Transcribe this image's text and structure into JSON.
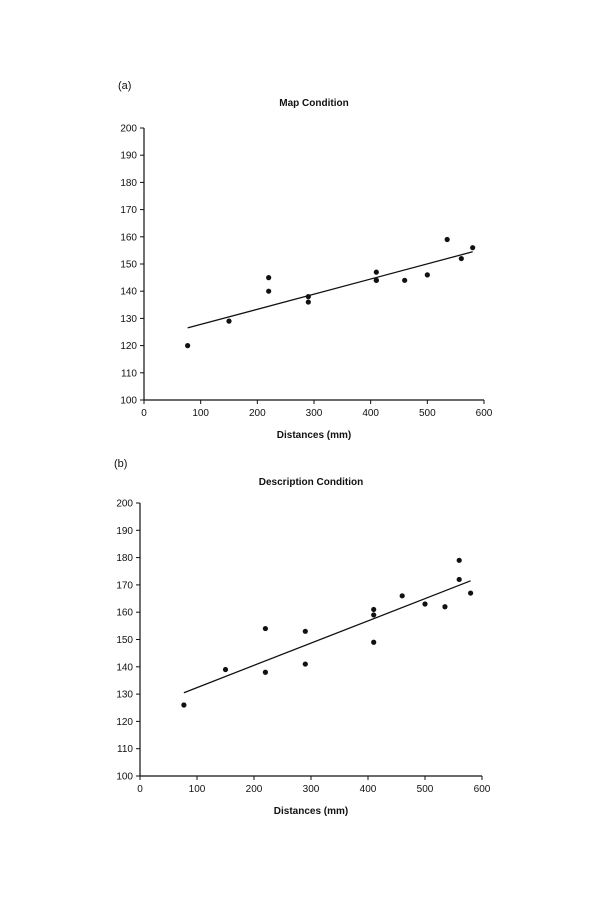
{
  "panels": [
    {
      "label": "(a)"
    },
    {
      "label": "(b)"
    }
  ],
  "chart_data": [
    {
      "type": "scatter",
      "title": "Map Condition",
      "xlabel": "Distances (mm)",
      "ylabel": "",
      "xlim": [
        0,
        600
      ],
      "ylim": [
        100,
        200
      ],
      "xticks": [
        0,
        100,
        200,
        300,
        400,
        500,
        600
      ],
      "yticks": [
        100,
        110,
        120,
        130,
        140,
        150,
        160,
        170,
        180,
        190,
        200
      ],
      "grid": false,
      "x": [
        77,
        150,
        220,
        220,
        290,
        290,
        410,
        410,
        410,
        460,
        500,
        535,
        560,
        580
      ],
      "y": [
        120,
        129,
        145,
        140,
        138,
        136,
        147,
        144,
        144,
        144,
        146,
        159,
        152,
        156
      ],
      "trendline": {
        "x": [
          77,
          580
        ],
        "y": [
          126.5,
          154.5
        ]
      }
    },
    {
      "type": "scatter",
      "title": "Description Condition",
      "xlabel": "Distances (mm)",
      "ylabel": "",
      "xlim": [
        0,
        600
      ],
      "ylim": [
        100,
        200
      ],
      "xticks": [
        0,
        100,
        200,
        300,
        400,
        500,
        600
      ],
      "yticks": [
        100,
        110,
        120,
        130,
        140,
        150,
        160,
        170,
        180,
        190,
        200
      ],
      "grid": false,
      "x": [
        77,
        150,
        220,
        220,
        290,
        290,
        410,
        410,
        410,
        460,
        500,
        535,
        560,
        560,
        580
      ],
      "y": [
        126,
        139,
        154,
        138,
        153,
        141,
        161,
        159,
        149,
        166,
        163,
        162,
        179,
        172,
        167
      ],
      "trendline": {
        "x": [
          77,
          580
        ],
        "y": [
          130.5,
          171.5
        ]
      }
    }
  ]
}
